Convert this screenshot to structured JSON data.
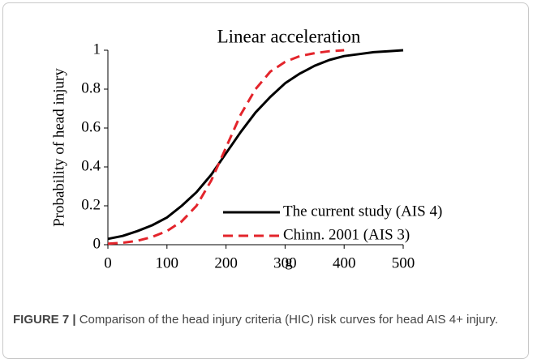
{
  "chart_data": {
    "type": "line",
    "title": "Linear acceleration",
    "x_label": "g",
    "y_label": "Probability of head injury",
    "x": [
      0,
      25,
      50,
      75,
      100,
      125,
      150,
      175,
      200,
      225,
      250,
      275,
      300,
      325,
      350,
      375,
      400,
      425,
      450,
      475,
      500
    ],
    "series": [
      {
        "name": "The current study (AIS 4)",
        "color": "#000000",
        "dash": false,
        "values": [
          0.03,
          0.045,
          0.07,
          0.1,
          0.14,
          0.2,
          0.27,
          0.36,
          0.47,
          0.58,
          0.68,
          0.76,
          0.83,
          0.88,
          0.92,
          0.95,
          0.97,
          0.98,
          0.99,
          0.995,
          1.0
        ]
      },
      {
        "name": "Chinn. 2001 (AIS 3)",
        "color": "#e3242b",
        "dash": true,
        "values": [
          0.005,
          0.01,
          0.02,
          0.04,
          0.07,
          0.12,
          0.2,
          0.33,
          0.5,
          0.67,
          0.8,
          0.89,
          0.94,
          0.97,
          0.985,
          0.995,
          1.0,
          null,
          null,
          null,
          null
        ]
      }
    ],
    "xlim": [
      0,
      500
    ],
    "xticks": [
      0,
      100,
      200,
      300,
      400,
      500
    ],
    "ylim": [
      0,
      1
    ],
    "yticks": [
      0,
      0.2,
      0.4,
      0.6,
      0.8,
      1
    ],
    "grid": false,
    "legend": "lower right"
  },
  "caption": {
    "label": "FIGURE 7 |",
    "text": "Comparison of the head injury criteria (HIC) risk curves for head AIS 4+ injury."
  }
}
